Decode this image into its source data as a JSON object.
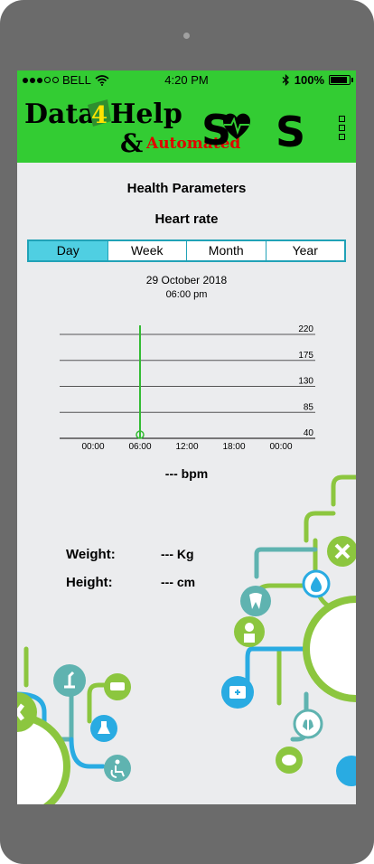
{
  "status_bar": {
    "carrier": "BELL",
    "time": "4:20 PM",
    "battery": "100%",
    "battery_level": 1.0
  },
  "header": {
    "logo_text_1": "Data",
    "logo_text_2": "4",
    "logo_text_3": "Help",
    "logo_amp": "&",
    "logo_automated": "Automated",
    "logo_sos": "SOS"
  },
  "page": {
    "title": "Health Parameters",
    "subtitle": "Heart rate"
  },
  "tabs": [
    {
      "label": "Day"
    },
    {
      "label": "Week"
    },
    {
      "label": "Month"
    },
    {
      "label": "Year"
    }
  ],
  "selected": {
    "date": "29 October 2018",
    "time": "06:00 pm"
  },
  "chart_data": {
    "type": "line",
    "x_ticks": [
      "00:00",
      "06:00",
      "12:00",
      "18:00",
      "00:00"
    ],
    "y_ticks": [
      220,
      175,
      130,
      85,
      40
    ],
    "ylim": [
      40,
      220
    ],
    "marker": {
      "x": "06:00",
      "y": 40
    },
    "cursor_x": "06:00"
  },
  "readings": {
    "bpm": "--- bpm",
    "weight_label": "Weight:",
    "weight_value": "--- Kg",
    "height_label": "Height:",
    "height_value": "--- cm"
  },
  "colors": {
    "header_green": "#33cc33",
    "tab_border": "#21a2b7",
    "tab_active": "#4fcfe2",
    "cursor": "#33bb33"
  }
}
